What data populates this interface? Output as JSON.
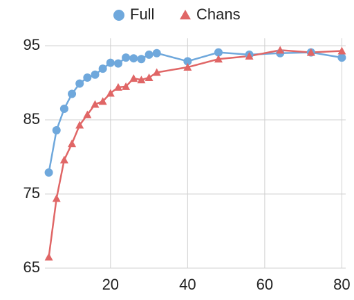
{
  "chart_data": {
    "type": "line",
    "x": [
      4,
      6,
      8,
      10,
      12,
      14,
      16,
      18,
      20,
      22,
      24,
      26,
      28,
      30,
      32,
      40,
      48,
      56,
      64,
      72,
      80
    ],
    "series": [
      {
        "name": "Full",
        "color": "#6fa8dc",
        "marker": "circle",
        "values": [
          77.9,
          83.6,
          86.5,
          88.5,
          89.9,
          90.7,
          91.1,
          91.9,
          92.7,
          92.6,
          93.4,
          93.3,
          93.2,
          93.8,
          94.0,
          92.9,
          94.1,
          93.8,
          94.0,
          94.1,
          93.4
        ]
      },
      {
        "name": "Chans",
        "color": "#e06666",
        "marker": "triangle",
        "values": [
          66.5,
          74.4,
          79.6,
          81.8,
          84.3,
          85.7,
          87.1,
          87.5,
          88.6,
          89.4,
          89.5,
          90.6,
          90.4,
          90.7,
          91.4,
          92.1,
          93.2,
          93.6,
          94.4,
          94.1,
          94.3
        ]
      }
    ],
    "xlim": [
      3,
      81
    ],
    "xticks": [
      20,
      40,
      60,
      80
    ],
    "ylim": [
      65,
      96
    ],
    "yticks": [
      65,
      75,
      85,
      95
    ],
    "grid": true,
    "legend": "top"
  }
}
